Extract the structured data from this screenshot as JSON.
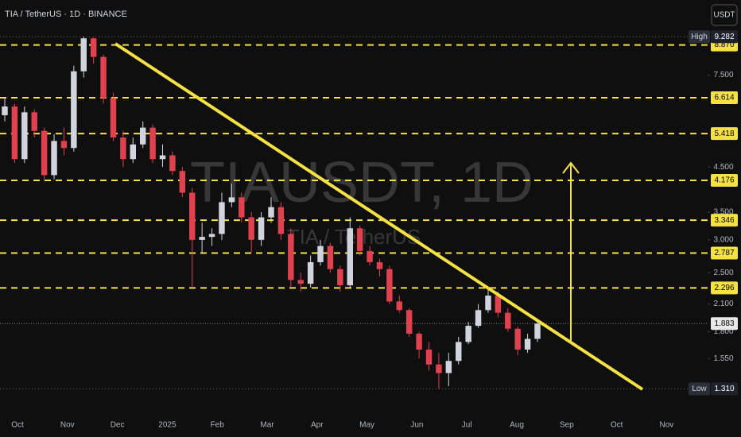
{
  "chart_data": {
    "type": "candlestick",
    "title": "TIA / TetherUS · 1D · BINANCE",
    "currency": "USDT",
    "watermark": "TIAUSDT, 1D",
    "watermark_sub": "TIA / TetherUS",
    "log_scale": true,
    "up_color": "#d1d4dc",
    "down_color": "#e0414f",
    "level_color": "#f5e143",
    "ylim": [
      1.25,
      9.8
    ],
    "yticks": [
      {
        "value": 7.5,
        "label": "7.500"
      },
      {
        "value": 4.5,
        "label": "4.500"
      },
      {
        "value": 3.5,
        "label": "3.500"
      },
      {
        "value": 3,
        "label": "3.000"
      },
      {
        "value": 2.5,
        "label": "2.500"
      },
      {
        "value": 2.1,
        "label": "2.100"
      },
      {
        "value": 1.8,
        "label": "1.800"
      },
      {
        "value": 1.55,
        "label": "1.550"
      }
    ],
    "key_levels": [
      {
        "value": 8.87,
        "label": "8.870"
      },
      {
        "value": 6.614,
        "label": "6.614"
      },
      {
        "value": 5.418,
        "label": "5.418"
      },
      {
        "value": 4.176,
        "label": "4.176"
      },
      {
        "value": 3.346,
        "label": "3.346"
      },
      {
        "value": 2.787,
        "label": "2.787"
      },
      {
        "value": 2.296,
        "label": "2.296"
      }
    ],
    "current": {
      "value": 1.883,
      "label": "1.883"
    },
    "high": {
      "name": "High",
      "value": 9.282,
      "label": "9.282"
    },
    "low": {
      "name": "Low",
      "value": 1.31,
      "label": "1.310"
    },
    "categories": [
      "Oct",
      "Nov",
      "Dec",
      "2025",
      "Feb",
      "Mar",
      "Apr",
      "May",
      "Jun",
      "Jul",
      "Aug",
      "Sep",
      "Oct",
      "Nov"
    ],
    "candles": [
      [
        6.0,
        6.6,
        5.8,
        6.3
      ],
      [
        6.3,
        6.4,
        4.6,
        4.7
      ],
      [
        4.7,
        6.3,
        4.6,
        6.1
      ],
      [
        6.1,
        6.2,
        5.3,
        5.5
      ],
      [
        5.5,
        5.6,
        4.2,
        4.3
      ],
      [
        4.3,
        5.4,
        4.2,
        5.2
      ],
      [
        5.2,
        5.6,
        4.8,
        5.0
      ],
      [
        5.0,
        7.9,
        4.9,
        7.66
      ],
      [
        7.66,
        9.282,
        7.4,
        9.2
      ],
      [
        9.2,
        9.25,
        8.0,
        8.3
      ],
      [
        8.3,
        8.4,
        6.4,
        6.6
      ],
      [
        6.6,
        6.8,
        5.2,
        5.3
      ],
      [
        5.3,
        5.5,
        4.5,
        4.7
      ],
      [
        4.7,
        5.3,
        4.6,
        5.1
      ],
      [
        5.1,
        5.8,
        5.0,
        5.6
      ],
      [
        5.6,
        5.7,
        4.6,
        4.7
      ],
      [
        4.7,
        5.1,
        4.5,
        4.8
      ],
      [
        4.8,
        4.9,
        4.3,
        4.4
      ],
      [
        4.4,
        4.5,
        3.8,
        3.9
      ],
      [
        3.9,
        4.0,
        2.3,
        3.0
      ],
      [
        3.0,
        3.3,
        2.8,
        3.05
      ],
      [
        3.05,
        3.2,
        2.9,
        3.1
      ],
      [
        3.1,
        3.9,
        3.0,
        3.7
      ],
      [
        3.7,
        4.1,
        3.6,
        3.8
      ],
      [
        3.8,
        3.9,
        3.3,
        3.4
      ],
      [
        3.4,
        3.5,
        2.8,
        3.0
      ],
      [
        3.0,
        3.5,
        2.9,
        3.4
      ],
      [
        3.4,
        3.8,
        3.3,
        3.6
      ],
      [
        3.6,
        3.7,
        3.0,
        3.1
      ],
      [
        3.1,
        3.2,
        2.3,
        2.4
      ],
      [
        2.4,
        2.5,
        2.25,
        2.35
      ],
      [
        2.35,
        2.75,
        2.3,
        2.65
      ],
      [
        2.65,
        3.0,
        2.6,
        2.9
      ],
      [
        2.9,
        2.95,
        2.5,
        2.55
      ],
      [
        2.55,
        2.6,
        2.25,
        2.33
      ],
      [
        2.33,
        3.4,
        2.3,
        3.2
      ],
      [
        3.2,
        3.25,
        2.75,
        2.82
      ],
      [
        2.82,
        2.9,
        2.6,
        2.65
      ],
      [
        2.65,
        2.7,
        2.45,
        2.55
      ],
      [
        2.55,
        2.6,
        2.1,
        2.13
      ],
      [
        2.13,
        2.2,
        2.0,
        2.03
      ],
      [
        2.03,
        2.05,
        1.75,
        1.78
      ],
      [
        1.78,
        1.8,
        1.55,
        1.63
      ],
      [
        1.63,
        1.7,
        1.45,
        1.5
      ],
      [
        1.5,
        1.6,
        1.31,
        1.43
      ],
      [
        1.43,
        1.6,
        1.33,
        1.53
      ],
      [
        1.53,
        1.75,
        1.5,
        1.7
      ],
      [
        1.7,
        1.9,
        1.68,
        1.86
      ],
      [
        1.86,
        2.1,
        1.84,
        2.03
      ],
      [
        2.03,
        2.3,
        2.0,
        2.2
      ],
      [
        2.2,
        2.25,
        1.95,
        2.0
      ],
      [
        2.0,
        2.05,
        1.8,
        1.83
      ],
      [
        1.83,
        1.85,
        1.58,
        1.63
      ],
      [
        1.63,
        1.78,
        1.6,
        1.73
      ],
      [
        1.73,
        1.93,
        1.7,
        1.883
      ]
    ]
  }
}
